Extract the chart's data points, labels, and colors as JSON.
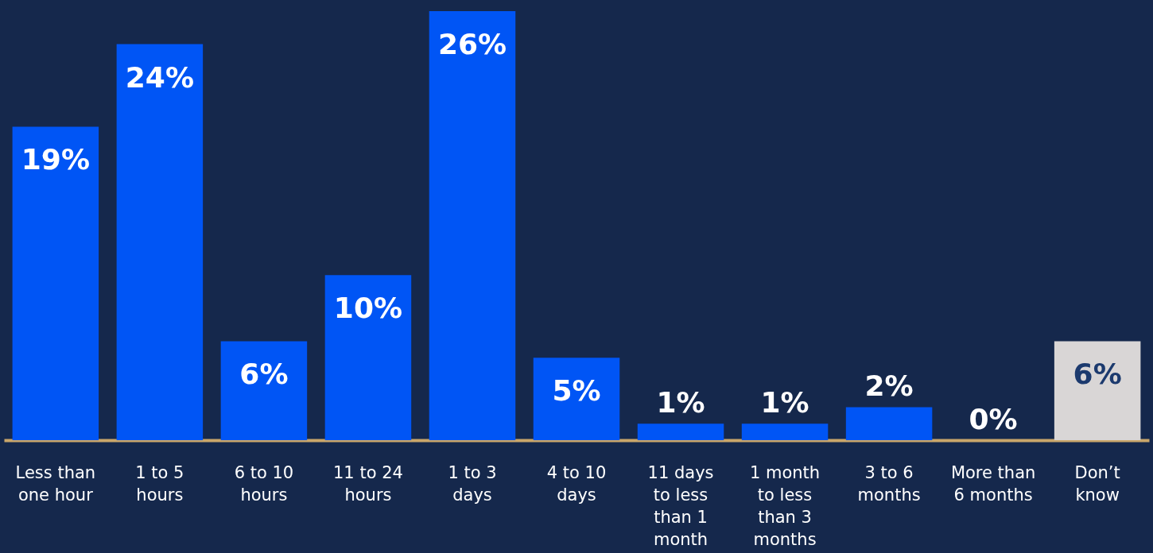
{
  "chart_data": {
    "type": "bar",
    "categories": [
      "Less than one hour",
      "1 to 5 hours",
      "6 to 10 hours",
      "11 to 24 hours",
      "1 to 3 days",
      "4 to 10 days",
      "11 days to less than 1 month",
      "1 month to less than 3 months",
      "3 to 6 months",
      "More than 6 months",
      "Don’t know"
    ],
    "values": [
      19,
      24,
      6,
      10,
      26,
      5,
      1,
      1,
      2,
      0,
      6
    ],
    "value_labels": [
      "19%",
      "24%",
      "6%",
      "10%",
      "26%",
      "5%",
      "1%",
      "1%",
      "2%",
      "0%",
      "6%"
    ],
    "colors": [
      "#0055f5",
      "#0055f5",
      "#0055f5",
      "#0055f5",
      "#0055f5",
      "#0055f5",
      "#0055f5",
      "#0055f5",
      "#0055f5",
      "#0055f5",
      "#d9d6d6"
    ],
    "grid": false
  }
}
